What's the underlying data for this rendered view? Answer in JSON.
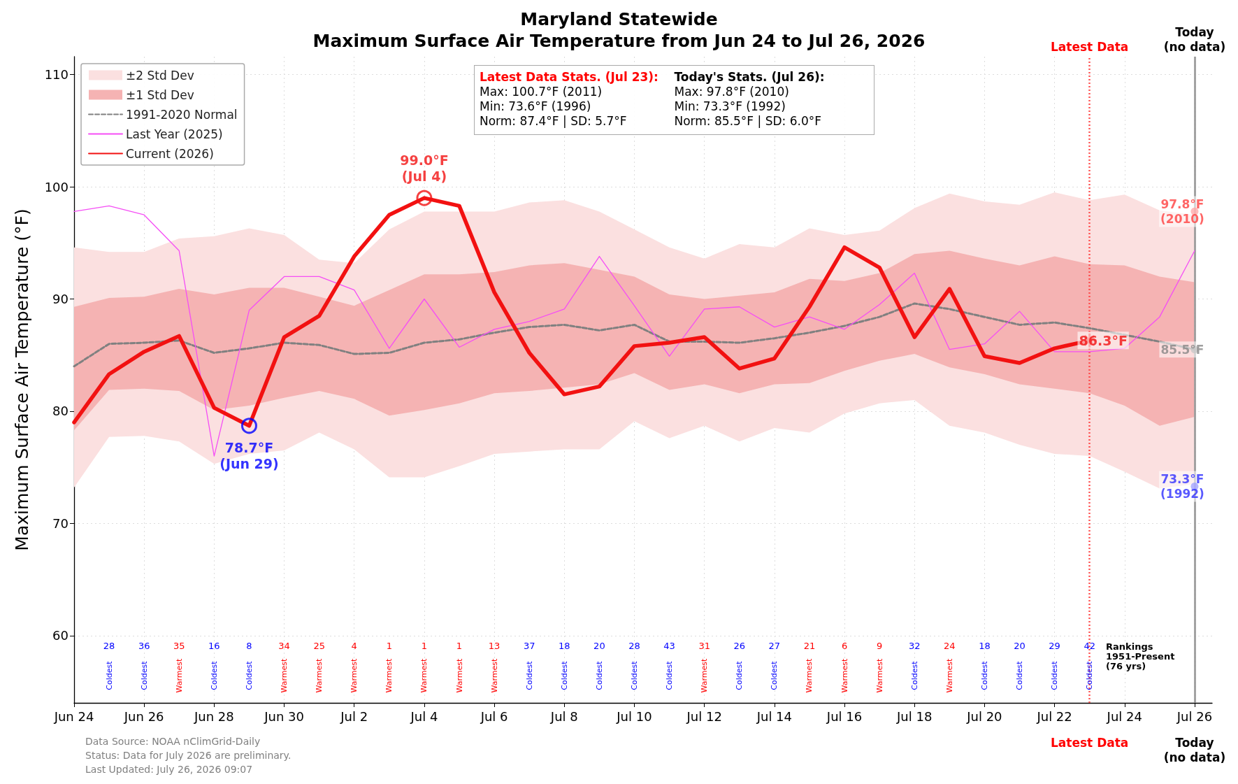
{
  "chart_data": {
    "type": "line",
    "title": "Maryland Statewide",
    "subtitle": "Maximum Surface Air Temperature from Jun 24 to Jul 26, 2026",
    "ylabel": "Maximum Surface Air Temperature (°F)",
    "x": [
      "2026-06-24",
      "2026-06-25",
      "2026-06-26",
      "2026-06-27",
      "2026-06-28",
      "2026-06-29",
      "2026-06-30",
      "2026-07-01",
      "2026-07-02",
      "2026-07-03",
      "2026-07-04",
      "2026-07-05",
      "2026-07-06",
      "2026-07-07",
      "2026-07-08",
      "2026-07-09",
      "2026-07-10",
      "2026-07-11",
      "2026-07-12",
      "2026-07-13",
      "2026-07-14",
      "2026-07-15",
      "2026-07-16",
      "2026-07-17",
      "2026-07-18",
      "2026-07-19",
      "2026-07-20",
      "2026-07-21",
      "2026-07-22",
      "2026-07-23",
      "2026-07-24",
      "2026-07-25",
      "2026-07-26"
    ],
    "xlim": [
      "2026-06-24",
      "2026-07-26T12:00"
    ],
    "xticks": [
      {
        "value": "2026-06-24",
        "label": "Jun 24"
      },
      {
        "value": "2026-06-26",
        "label": "Jun 26"
      },
      {
        "value": "2026-06-28",
        "label": "Jun 28"
      },
      {
        "value": "2026-06-30",
        "label": "Jun 30"
      },
      {
        "value": "2026-07-02",
        "label": "Jul 2"
      },
      {
        "value": "2026-07-04",
        "label": "Jul 4"
      },
      {
        "value": "2026-07-06",
        "label": "Jul 6"
      },
      {
        "value": "2026-07-08",
        "label": "Jul 8"
      },
      {
        "value": "2026-07-10",
        "label": "Jul 10"
      },
      {
        "value": "2026-07-12",
        "label": "Jul 12"
      },
      {
        "value": "2026-07-14",
        "label": "Jul 14"
      },
      {
        "value": "2026-07-16",
        "label": "Jul 16"
      },
      {
        "value": "2026-07-18",
        "label": "Jul 18"
      },
      {
        "value": "2026-07-20",
        "label": "Jul 20"
      },
      {
        "value": "2026-07-22",
        "label": "Jul 22"
      },
      {
        "value": "2026-07-24",
        "label": "Jul 24"
      },
      {
        "value": "2026-07-26",
        "label": "Jul 26"
      }
    ],
    "ylim": [
      54,
      111.6
    ],
    "yticks": [
      60,
      70,
      80,
      90,
      100,
      110
    ],
    "grid": true,
    "legend": "top left",
    "marker": "none",
    "series": [
      {
        "name": "±2 Std Dev",
        "type": "area",
        "color": "#fbe0e0",
        "values": [
          null,
          null,
          null,
          null,
          null,
          null,
          null,
          null,
          null,
          null,
          null,
          null,
          null,
          null,
          null,
          null,
          null,
          null,
          null,
          null,
          null,
          null,
          null,
          null,
          null,
          null,
          null,
          null,
          null,
          null,
          null,
          null,
          null
        ],
        "lower": [
          73.2,
          77.7,
          77.8,
          77.3,
          75.3,
          76.2,
          76.5,
          78.1,
          76.6,
          74.1,
          74.1,
          75.1,
          76.2,
          76.4,
          76.6,
          76.6,
          79.1,
          77.6,
          78.7,
          77.3,
          78.5,
          78.1,
          79.8,
          80.7,
          81.0,
          78.7,
          78.1,
          77.0,
          76.2,
          76.0,
          74.6,
          73.1,
          73.5
        ],
        "upper": [
          94.6,
          94.2,
          94.2,
          95.4,
          95.6,
          96.3,
          95.7,
          93.5,
          93.2,
          96.2,
          97.8,
          97.8,
          97.8,
          98.6,
          98.8,
          97.8,
          96.2,
          94.6,
          93.6,
          94.9,
          94.6,
          96.3,
          95.7,
          96.1,
          98.1,
          99.4,
          98.7,
          98.4,
          99.5,
          98.8,
          99.3,
          97.9,
          97.5
        ]
      },
      {
        "name": "±1 Std Dev",
        "type": "area",
        "color": "#f5b3b3",
        "values": [
          null,
          null,
          null,
          null,
          null,
          null,
          null,
          null,
          null,
          null,
          null,
          null,
          null,
          null,
          null,
          null,
          null,
          null,
          null,
          null,
          null,
          null,
          null,
          null,
          null,
          null,
          null,
          null,
          null,
          null,
          null,
          null,
          null
        ],
        "lower": [
          78.3,
          81.9,
          82.0,
          81.8,
          80.1,
          80.5,
          81.2,
          81.8,
          81.1,
          79.6,
          80.1,
          80.7,
          81.6,
          81.8,
          82.1,
          82.4,
          83.4,
          81.9,
          82.4,
          81.6,
          82.4,
          82.5,
          83.6,
          84.5,
          85.1,
          83.9,
          83.3,
          82.4,
          82.0,
          81.6,
          80.5,
          78.7,
          79.5
        ],
        "upper": [
          89.3,
          90.1,
          90.2,
          90.9,
          90.4,
          91.0,
          91.0,
          90.2,
          89.4,
          90.8,
          92.2,
          92.2,
          92.4,
          93.0,
          93.2,
          92.6,
          92.0,
          90.4,
          90.0,
          90.3,
          90.6,
          91.8,
          91.6,
          92.3,
          94.0,
          94.3,
          93.6,
          93.0,
          93.8,
          93.1,
          93.0,
          92.0,
          91.5
        ]
      },
      {
        "name": "1991-2020 Normal",
        "color": "#808080",
        "line_style": "dashed",
        "values": [
          84.0,
          86.0,
          86.1,
          86.3,
          85.2,
          85.6,
          86.1,
          85.9,
          85.1,
          85.2,
          86.1,
          86.4,
          87.0,
          87.5,
          87.7,
          87.2,
          87.7,
          86.2,
          86.2,
          86.1,
          86.5,
          87.0,
          87.6,
          88.4,
          89.6,
          89.1,
          88.4,
          87.7,
          87.9,
          87.4,
          86.8,
          86.2,
          85.5
        ]
      },
      {
        "name": "Last Year (2025)",
        "color": "#f54ef5",
        "line_style": "solid",
        "values": [
          97.8,
          98.3,
          97.5,
          94.3,
          76.0,
          89.0,
          92.0,
          92.0,
          90.8,
          85.6,
          90.0,
          85.7,
          87.3,
          88.0,
          89.1,
          93.8,
          89.4,
          84.9,
          89.1,
          89.3,
          87.5,
          88.4,
          87.3,
          89.5,
          92.3,
          85.5,
          86.0,
          88.9,
          85.3,
          85.3,
          85.6,
          88.4,
          94.3
        ]
      },
      {
        "name": "Current (2026)",
        "color": "#f21111",
        "line_style": "solid",
        "values": [
          79.0,
          83.3,
          85.3,
          86.7,
          80.3,
          78.7,
          86.6,
          88.5,
          93.8,
          97.5,
          99.0,
          98.3,
          90.6,
          85.2,
          81.5,
          82.2,
          85.8,
          86.1,
          86.6,
          83.8,
          84.7,
          89.3,
          94.6,
          92.8,
          86.6,
          90.9,
          84.9,
          84.3,
          85.6,
          86.3,
          null,
          null,
          null
        ]
      },
      {
        "type": "scatter",
        "marker": "circle",
        "x": [
          "2026-06-29",
          "2026-07-04"
        ],
        "values": [
          78.7,
          99.0
        ],
        "colors": [
          "#0000ff",
          "#f21111"
        ],
        "value_labels": [
          "78.7°F\n(Jun 29)",
          "99.0°F\n(Jul 4)"
        ]
      },
      {
        "type": "scatter",
        "marker": "cross",
        "x": [
          "2026-07-23"
        ],
        "values": [
          86.3
        ],
        "colors": [
          "#f21111"
        ],
        "value_labels": [
          "86.3°F"
        ]
      },
      {
        "type": "scatter",
        "marker": "circle",
        "x": [
          "2026-07-26",
          "2026-07-26",
          "2026-07-26"
        ],
        "values": [
          97.8,
          85.5,
          73.3
        ],
        "colors": [
          "#ff3333",
          "#808080",
          "#2222ff"
        ],
        "value_labels": [
          "97.8°F\n(2010)",
          "85.5°F",
          "73.3°F\n(1992)"
        ]
      }
    ],
    "ref_lines": [
      {
        "axis": "x",
        "value": "2026-07-23",
        "label": "Latest Data",
        "color": "#ff4444",
        "line_style": "dotted"
      },
      {
        "axis": "x",
        "value": "2026-07-26",
        "label": "Today\n(no data)",
        "color": "#999999",
        "line_style": "solid"
      }
    ],
    "annotations": [
      "Latest Data Stats. (Jul 23):\nMax: 100.7°F (2011)\nMin: 73.6°F (1996)\nNorm: 87.4°F | SD: 5.7°F",
      "Today's Stats. (Jul 26):\nMax: 97.8°F (2010)\nMin: 73.3°F (1992)\nNorm: 85.5°F | SD: 6.0°F",
      "28\nColdest",
      "36\nColdest",
      "35\nWarmest",
      "16\nColdest",
      "8\nColdest",
      "34\nWarmest",
      "25\nWarmest",
      "4\nWarmest",
      "1\nWarmest",
      "1\nWarmest",
      "1\nWarmest",
      "13\nWarmest",
      "37\nColdest",
      "18\nColdest",
      "20\nColdest",
      "28\nColdest",
      "43\nColdest",
      "31\nWarmest",
      "26\nColdest",
      "27\nColdest",
      "21\nWarmest",
      "6\nWarmest",
      "9\nWarmest",
      "32\nColdest",
      "24\nWarmest",
      "18\nColdest",
      "20\nColdest",
      "29\nColdest",
      "42\nColdest",
      "Rankings\n1951-Present\n(76 yrs)",
      "Data Source: NOAA nClimGrid-Daily\nStatus: Data for July 2026 are preliminary.\nLast Updated: July 26, 2026 09:07"
    ]
  }
}
